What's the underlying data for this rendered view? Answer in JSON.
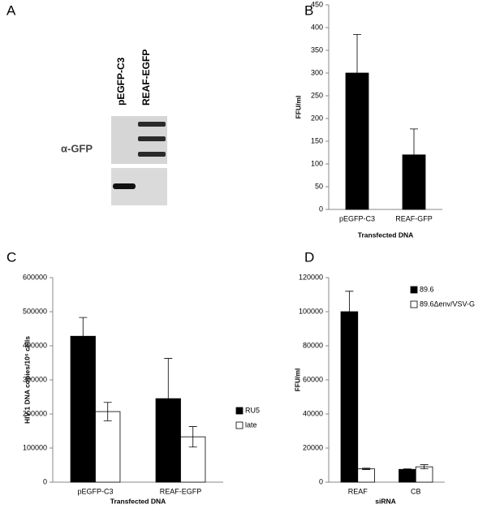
{
  "chart_data": [
    {
      "type": "blot",
      "panel": "A",
      "lanes": [
        "pEGFP-C3",
        "REAF-EGFP"
      ],
      "label": "α-GFP"
    },
    {
      "type": "bar",
      "panel": "B",
      "ylabel": "FFU/ml",
      "xlabel": "Transfected DNA",
      "categories": [
        "pEGFP-C3",
        "REAF-GFP"
      ],
      "values": [
        300,
        120
      ],
      "errors": [
        85,
        57
      ],
      "color": "#000000",
      "ylim": [
        0,
        450
      ],
      "yticks": [
        0,
        50,
        100,
        150,
        200,
        250,
        300,
        350,
        400,
        450
      ]
    },
    {
      "type": "bar",
      "panel": "C",
      "ylabel": "HIV-1 DNA copies/10⁶ cells",
      "xlabel": "Transfected DNA",
      "categories": [
        "pEGFP-C3",
        "REAF-EGFP"
      ],
      "series": [
        {
          "name": "RU5",
          "color": "#000000",
          "values": [
            428000,
            245000
          ],
          "errors": [
            55000,
            118000
          ]
        },
        {
          "name": "late",
          "color": "#ffffff",
          "values": [
            207000,
            133000
          ],
          "errors": [
            27000,
            30000
          ]
        }
      ],
      "legend": "right",
      "ylim": [
        0,
        600000
      ],
      "yticks": [
        0,
        100000,
        200000,
        300000,
        400000,
        500000,
        600000
      ]
    },
    {
      "type": "bar",
      "panel": "D",
      "ylabel": "FFU/ml",
      "xlabel": "siRNA",
      "categories": [
        "REAF",
        "CB"
      ],
      "series": [
        {
          "name": "89.6",
          "color": "#000000",
          "values": [
            100000,
            7500
          ],
          "errors": [
            12000,
            300
          ]
        },
        {
          "name": "89.6Δenv/VSV-G",
          "color": "#ffffff",
          "values": [
            7800,
            9000
          ],
          "errors": [
            400,
            1200
          ]
        }
      ],
      "legend": "upper right",
      "ylim": [
        0,
        120000
      ],
      "yticks": [
        0,
        20000,
        40000,
        60000,
        80000,
        100000,
        120000
      ]
    }
  ]
}
